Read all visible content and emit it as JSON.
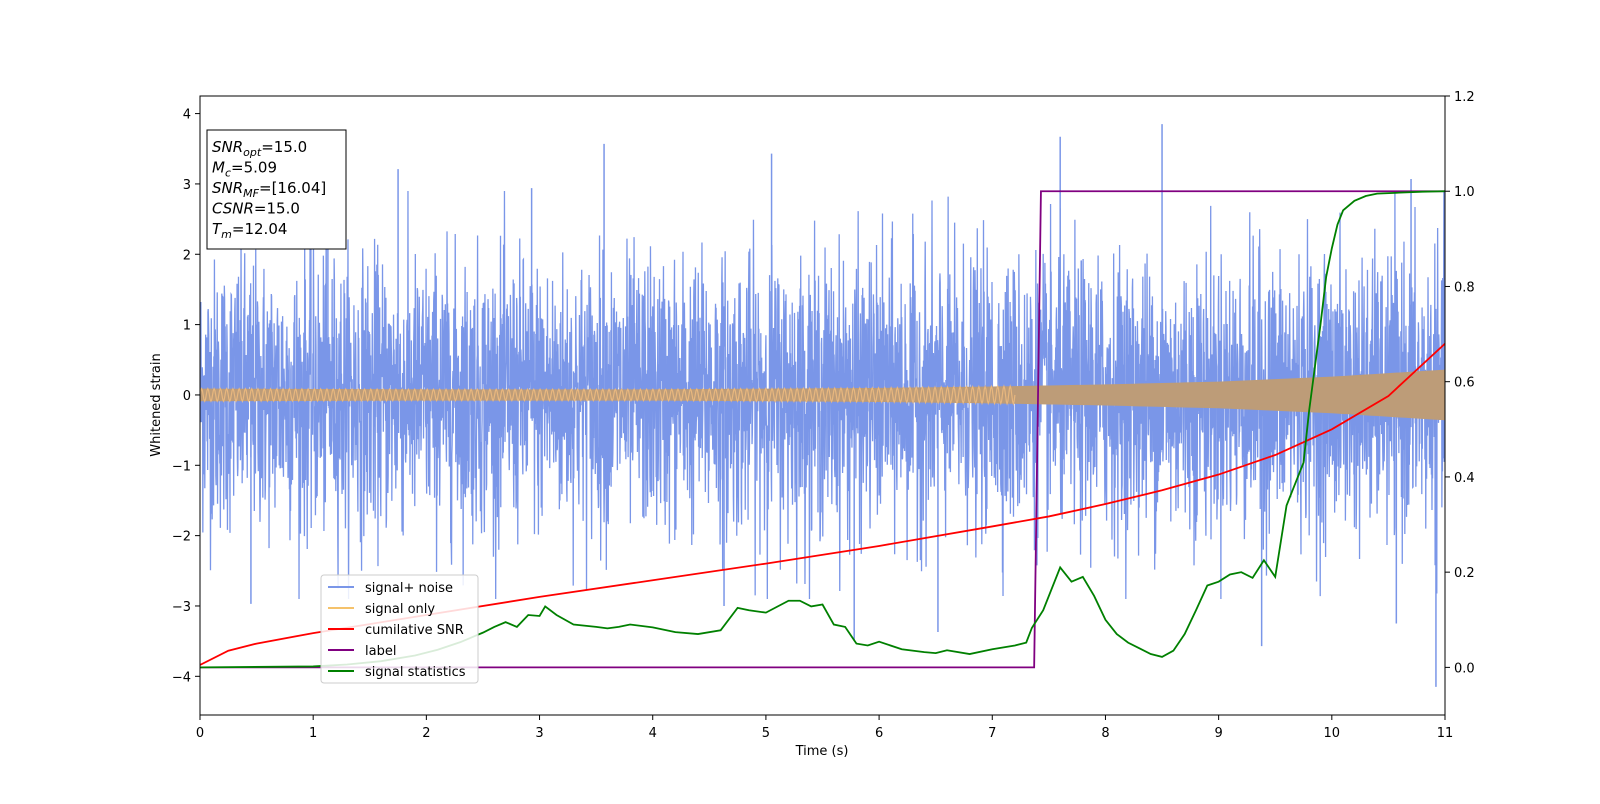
{
  "chart_data": {
    "type": "line",
    "xlabel": "Time (s)",
    "ylabel": "Whitened strain",
    "xlim": [
      0,
      11
    ],
    "ylim": [
      -4.55,
      4.25
    ],
    "y2lim": [
      -0.1,
      1.2
    ],
    "x_ticks": [
      0,
      1,
      2,
      3,
      4,
      5,
      6,
      7,
      8,
      9,
      10,
      11
    ],
    "y_ticks": [
      -4,
      -3,
      -2,
      -1,
      0,
      1,
      2,
      3,
      4
    ],
    "y_tick_labels": [
      "−4",
      "−3",
      "−2",
      "−1",
      "0",
      "1",
      "2",
      "3",
      "4"
    ],
    "y2_ticks": [
      0.0,
      0.2,
      0.4,
      0.6,
      0.8,
      1.0,
      1.2
    ],
    "y2_tick_labels": [
      "0.0",
      "0.2",
      "0.4",
      "0.6",
      "0.8",
      "1.0",
      "1.2"
    ],
    "grid": false,
    "legend_position": "lower-left",
    "info_box": {
      "lines": [
        {
          "sym": "SNR",
          "sub": "opt",
          "val": "=15.0"
        },
        {
          "sym": "M",
          "sub": "c",
          "val": "=5.09"
        },
        {
          "sym": "SNR",
          "sub": "MF",
          "val": "=[16.04]"
        },
        {
          "sym": "CSNR",
          "sub": "",
          "val": "=15.0"
        },
        {
          "sym": "T",
          "sub": "m",
          "val": "=12.04"
        }
      ]
    },
    "series": [
      {
        "name": "signal+ noise",
        "color": "#7a96e8",
        "axis": "left",
        "noise_std": 0.95,
        "peak_points": [
          [
            0.45,
            -2.97
          ],
          [
            1.13,
            3.17
          ],
          [
            1.75,
            3.21
          ],
          [
            2.93,
            2.94
          ],
          [
            3.57,
            3.57
          ],
          [
            4.63,
            -3.0
          ],
          [
            5.05,
            3.43
          ],
          [
            5.78,
            -3.5
          ],
          [
            6.52,
            -3.37
          ],
          [
            7.6,
            3.67
          ],
          [
            8.5,
            3.85
          ],
          [
            9.38,
            -3.57
          ],
          [
            10.57,
            -3.25
          ],
          [
            10.92,
            -4.15
          ],
          [
            10.7,
            3.07
          ]
        ]
      },
      {
        "name": "signal only",
        "color": "#f5c26b",
        "axis": "left",
        "envelope": [
          [
            0,
            0.09
          ],
          [
            2,
            0.08
          ],
          [
            4,
            0.08
          ],
          [
            6,
            0.1
          ],
          [
            7,
            0.12
          ],
          [
            8,
            0.15
          ],
          [
            9,
            0.19
          ],
          [
            10,
            0.26
          ],
          [
            11,
            0.36
          ]
        ]
      },
      {
        "name": "cumilative SNR",
        "color": "#ff0000",
        "axis": "right",
        "x": [
          0,
          0.25,
          0.5,
          1,
          2,
          3,
          4,
          5,
          6,
          7,
          7.5,
          8,
          8.5,
          9,
          9.5,
          10,
          10.5,
          11
        ],
        "y": [
          0.005,
          0.035,
          0.05,
          0.072,
          0.11,
          0.148,
          0.183,
          0.218,
          0.255,
          0.296,
          0.317,
          0.343,
          0.372,
          0.405,
          0.446,
          0.5,
          0.57,
          0.68
        ]
      },
      {
        "name": "label",
        "color": "#800080",
        "axis": "right",
        "x": [
          0,
          7.37,
          7.43,
          11
        ],
        "y": [
          0.0,
          0.0,
          1.0,
          1.0
        ]
      },
      {
        "name": "signal statistics",
        "color": "#008000",
        "axis": "right",
        "x": [
          0,
          1.0,
          1.3,
          1.6,
          1.9,
          2.1,
          2.3,
          2.5,
          2.6,
          2.7,
          2.8,
          2.9,
          3.0,
          3.05,
          3.15,
          3.3,
          3.5,
          3.6,
          3.7,
          3.8,
          4.0,
          4.2,
          4.4,
          4.6,
          4.75,
          4.85,
          5.0,
          5.2,
          5.3,
          5.4,
          5.5,
          5.6,
          5.7,
          5.8,
          5.9,
          6.0,
          6.2,
          6.4,
          6.5,
          6.6,
          6.8,
          7.0,
          7.2,
          7.3,
          7.35,
          7.45,
          7.6,
          7.7,
          7.8,
          7.9,
          8.0,
          8.1,
          8.2,
          8.3,
          8.4,
          8.5,
          8.6,
          8.7,
          8.8,
          8.9,
          9.0,
          9.1,
          9.2,
          9.3,
          9.4,
          9.5,
          9.6,
          9.65,
          9.7,
          9.75,
          9.8,
          9.85,
          9.9,
          9.95,
          10.0,
          10.05,
          10.1,
          10.2,
          10.3,
          10.4,
          10.6,
          10.8,
          11.0
        ],
        "y": [
          0.0,
          0.002,
          0.006,
          0.013,
          0.025,
          0.037,
          0.053,
          0.073,
          0.085,
          0.095,
          0.085,
          0.11,
          0.108,
          0.128,
          0.11,
          0.09,
          0.085,
          0.082,
          0.085,
          0.09,
          0.084,
          0.074,
          0.07,
          0.078,
          0.125,
          0.12,
          0.115,
          0.14,
          0.14,
          0.128,
          0.132,
          0.09,
          0.085,
          0.05,
          0.046,
          0.054,
          0.038,
          0.032,
          0.03,
          0.036,
          0.028,
          0.038,
          0.046,
          0.052,
          0.083,
          0.12,
          0.21,
          0.18,
          0.19,
          0.15,
          0.1,
          0.07,
          0.052,
          0.04,
          0.028,
          0.022,
          0.035,
          0.07,
          0.12,
          0.172,
          0.18,
          0.195,
          0.2,
          0.188,
          0.225,
          0.19,
          0.34,
          0.37,
          0.4,
          0.43,
          0.54,
          0.63,
          0.72,
          0.82,
          0.88,
          0.93,
          0.96,
          0.98,
          0.99,
          0.995,
          0.997,
          0.999,
          1.0
        ]
      }
    ]
  }
}
